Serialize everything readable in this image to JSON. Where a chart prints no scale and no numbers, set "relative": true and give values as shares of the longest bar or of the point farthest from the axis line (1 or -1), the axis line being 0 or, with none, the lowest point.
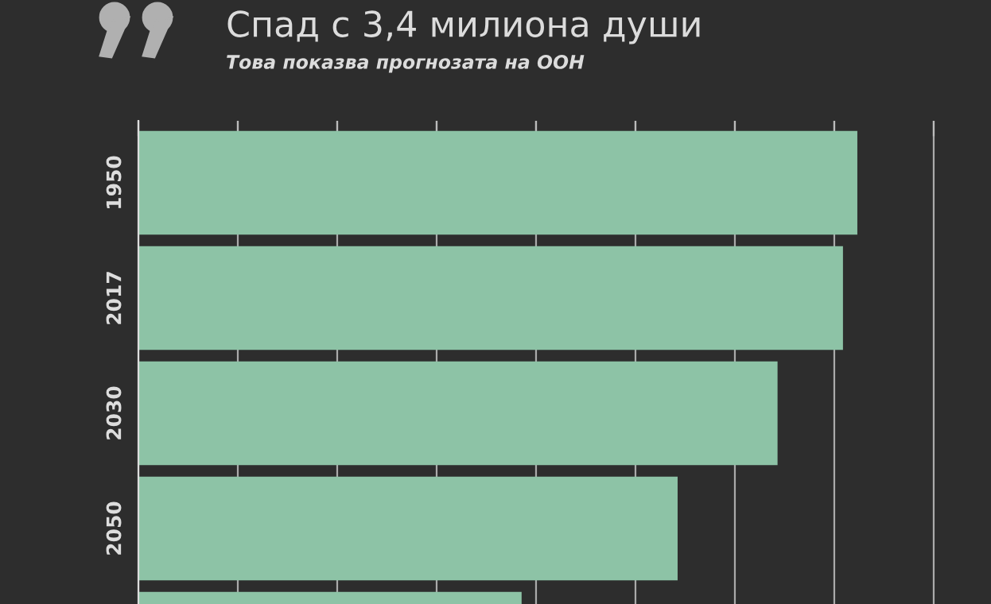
{
  "chart_data": {
    "type": "bar",
    "orientation": "horizontal",
    "relative": true,
    "title": "Спад с 3,4 милиона души",
    "subtitle": "Това показва прогнозата на ООН",
    "categories": [
      "1950",
      "2017",
      "2030",
      "2050",
      null
    ],
    "values": [
      1,
      0.98,
      0.889,
      0.75,
      0.533
    ],
    "color": "#8dc3a6",
    "grid": "x",
    "legend": false
  }
}
